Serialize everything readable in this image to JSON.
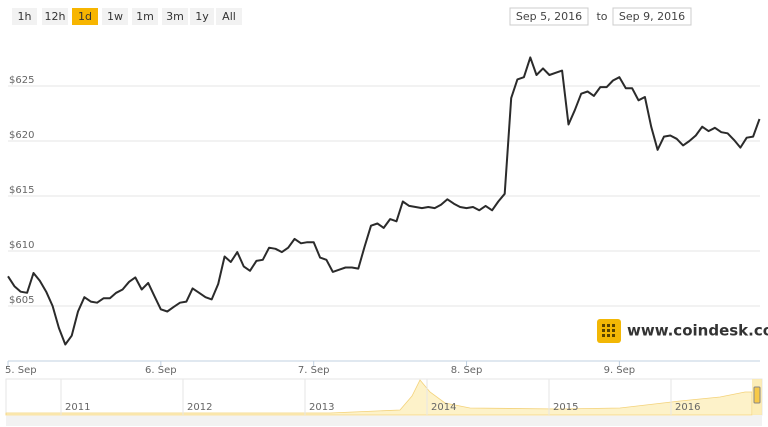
{
  "chart_data": {
    "type": "line",
    "range_buttons": [
      "1h",
      "12h",
      "1d",
      "1w",
      "1m",
      "3m",
      "1y",
      "All"
    ],
    "selected_button": "1d",
    "disabled_button": "1h",
    "date_from": "Sep 5, 2016",
    "date_separator": "to",
    "date_to": "Sep 9, 2016",
    "watermark": "www.coindesk.com",
    "navigator_labels": [
      "2011",
      "2012",
      "2013",
      "2014",
      "2015",
      "2016"
    ],
    "x": [
      5,
      5.042,
      5.083,
      5.125,
      5.167,
      5.208,
      5.25,
      5.292,
      5.333,
      5.375,
      5.417,
      5.458,
      5.5,
      5.542,
      5.583,
      5.625,
      5.667,
      5.708,
      5.75,
      5.792,
      5.833,
      5.875,
      5.917,
      5.958,
      6,
      6.042,
      6.083,
      6.125,
      6.167,
      6.208,
      6.25,
      6.292,
      6.333,
      6.375,
      6.417,
      6.458,
      6.5,
      6.542,
      6.583,
      6.625,
      6.667,
      6.708,
      6.75,
      6.792,
      6.833,
      6.875,
      6.917,
      6.958,
      7,
      7.042,
      7.083,
      7.125,
      7.167,
      7.208,
      7.25,
      7.292,
      7.333,
      7.375,
      7.417,
      7.458,
      7.5,
      7.542,
      7.583,
      7.625,
      7.667,
      7.708,
      7.75,
      7.792,
      7.833,
      7.875,
      7.917,
      7.958,
      8,
      8.042,
      8.083,
      8.125,
      8.167,
      8.208,
      8.25,
      8.292,
      8.333,
      8.375,
      8.417,
      8.458,
      8.5,
      8.542,
      8.583,
      8.625,
      8.667,
      8.708,
      8.75,
      8.792,
      8.833,
      8.875,
      8.917,
      8.958,
      9,
      9.042,
      9.083,
      9.125,
      9.167,
      9.208,
      9.25,
      9.292,
      9.333,
      9.375,
      9.417,
      9.458,
      9.5,
      9.542,
      9.583,
      9.625,
      9.667,
      9.708,
      9.75,
      9.792,
      9.833,
      9.875,
      9.917
    ],
    "series": [
      {
        "color": "#2b2b2b",
        "values": [
          607.7,
          606.8,
          606.3,
          606.2,
          608.0,
          607.3,
          606.3,
          605.0,
          603.0,
          601.5,
          602.3,
          604.5,
          605.8,
          605.4,
          605.3,
          605.7,
          605.7,
          606.2,
          606.5,
          607.2,
          607.6,
          606.5,
          607.1,
          605.9,
          604.7,
          604.5,
          604.9,
          605.3,
          605.4,
          606.6,
          606.2,
          605.8,
          605.6,
          607.0,
          609.5,
          609.0,
          609.9,
          608.6,
          608.2,
          609.1,
          609.2,
          610.3,
          610.2,
          609.9,
          610.3,
          611.1,
          610.7,
          610.8,
          610.8,
          609.4,
          609.2,
          608.1,
          608.3,
          608.5,
          608.5,
          608.4,
          610.4,
          612.3,
          612.5,
          612.1,
          612.9,
          612.7,
          614.5,
          614.1,
          614.0,
          613.9,
          614.0,
          613.9,
          614.2,
          614.7,
          614.3,
          614.0,
          613.9,
          614.0,
          613.7,
          614.1,
          613.7,
          614.5,
          615.2,
          623.9,
          625.6,
          625.8,
          627.6,
          626.0,
          626.6,
          626.0,
          626.2,
          626.4,
          621.5,
          622.8,
          624.3,
          624.5,
          624.1,
          624.9,
          624.9,
          625.5,
          625.8,
          624.8,
          624.8,
          623.7,
          624.0,
          621.3,
          619.2,
          620.4,
          620.5,
          620.2,
          619.6,
          620.0,
          620.5,
          621.3,
          620.9,
          621.2,
          620.8,
          620.7,
          620.1,
          619.4,
          620.3,
          620.4,
          622.0
        ]
      }
    ],
    "xlim": [
      5,
      9.92
    ],
    "xticks": [
      {
        "value": 5,
        "label": "5. Sep"
      },
      {
        "value": 6,
        "label": "6. Sep"
      },
      {
        "value": 7,
        "label": "7. Sep"
      },
      {
        "value": 8,
        "label": "8. Sep"
      },
      {
        "value": 9,
        "label": "9. Sep"
      }
    ],
    "ylim": [
      600,
      630
    ],
    "yticks": [
      {
        "value": 605,
        "label": "$605"
      },
      {
        "value": 610,
        "label": "$610"
      },
      {
        "value": 615,
        "label": "$615"
      },
      {
        "value": 620,
        "label": "$620"
      },
      {
        "value": 625,
        "label": "$625"
      }
    ],
    "grid": true
  }
}
